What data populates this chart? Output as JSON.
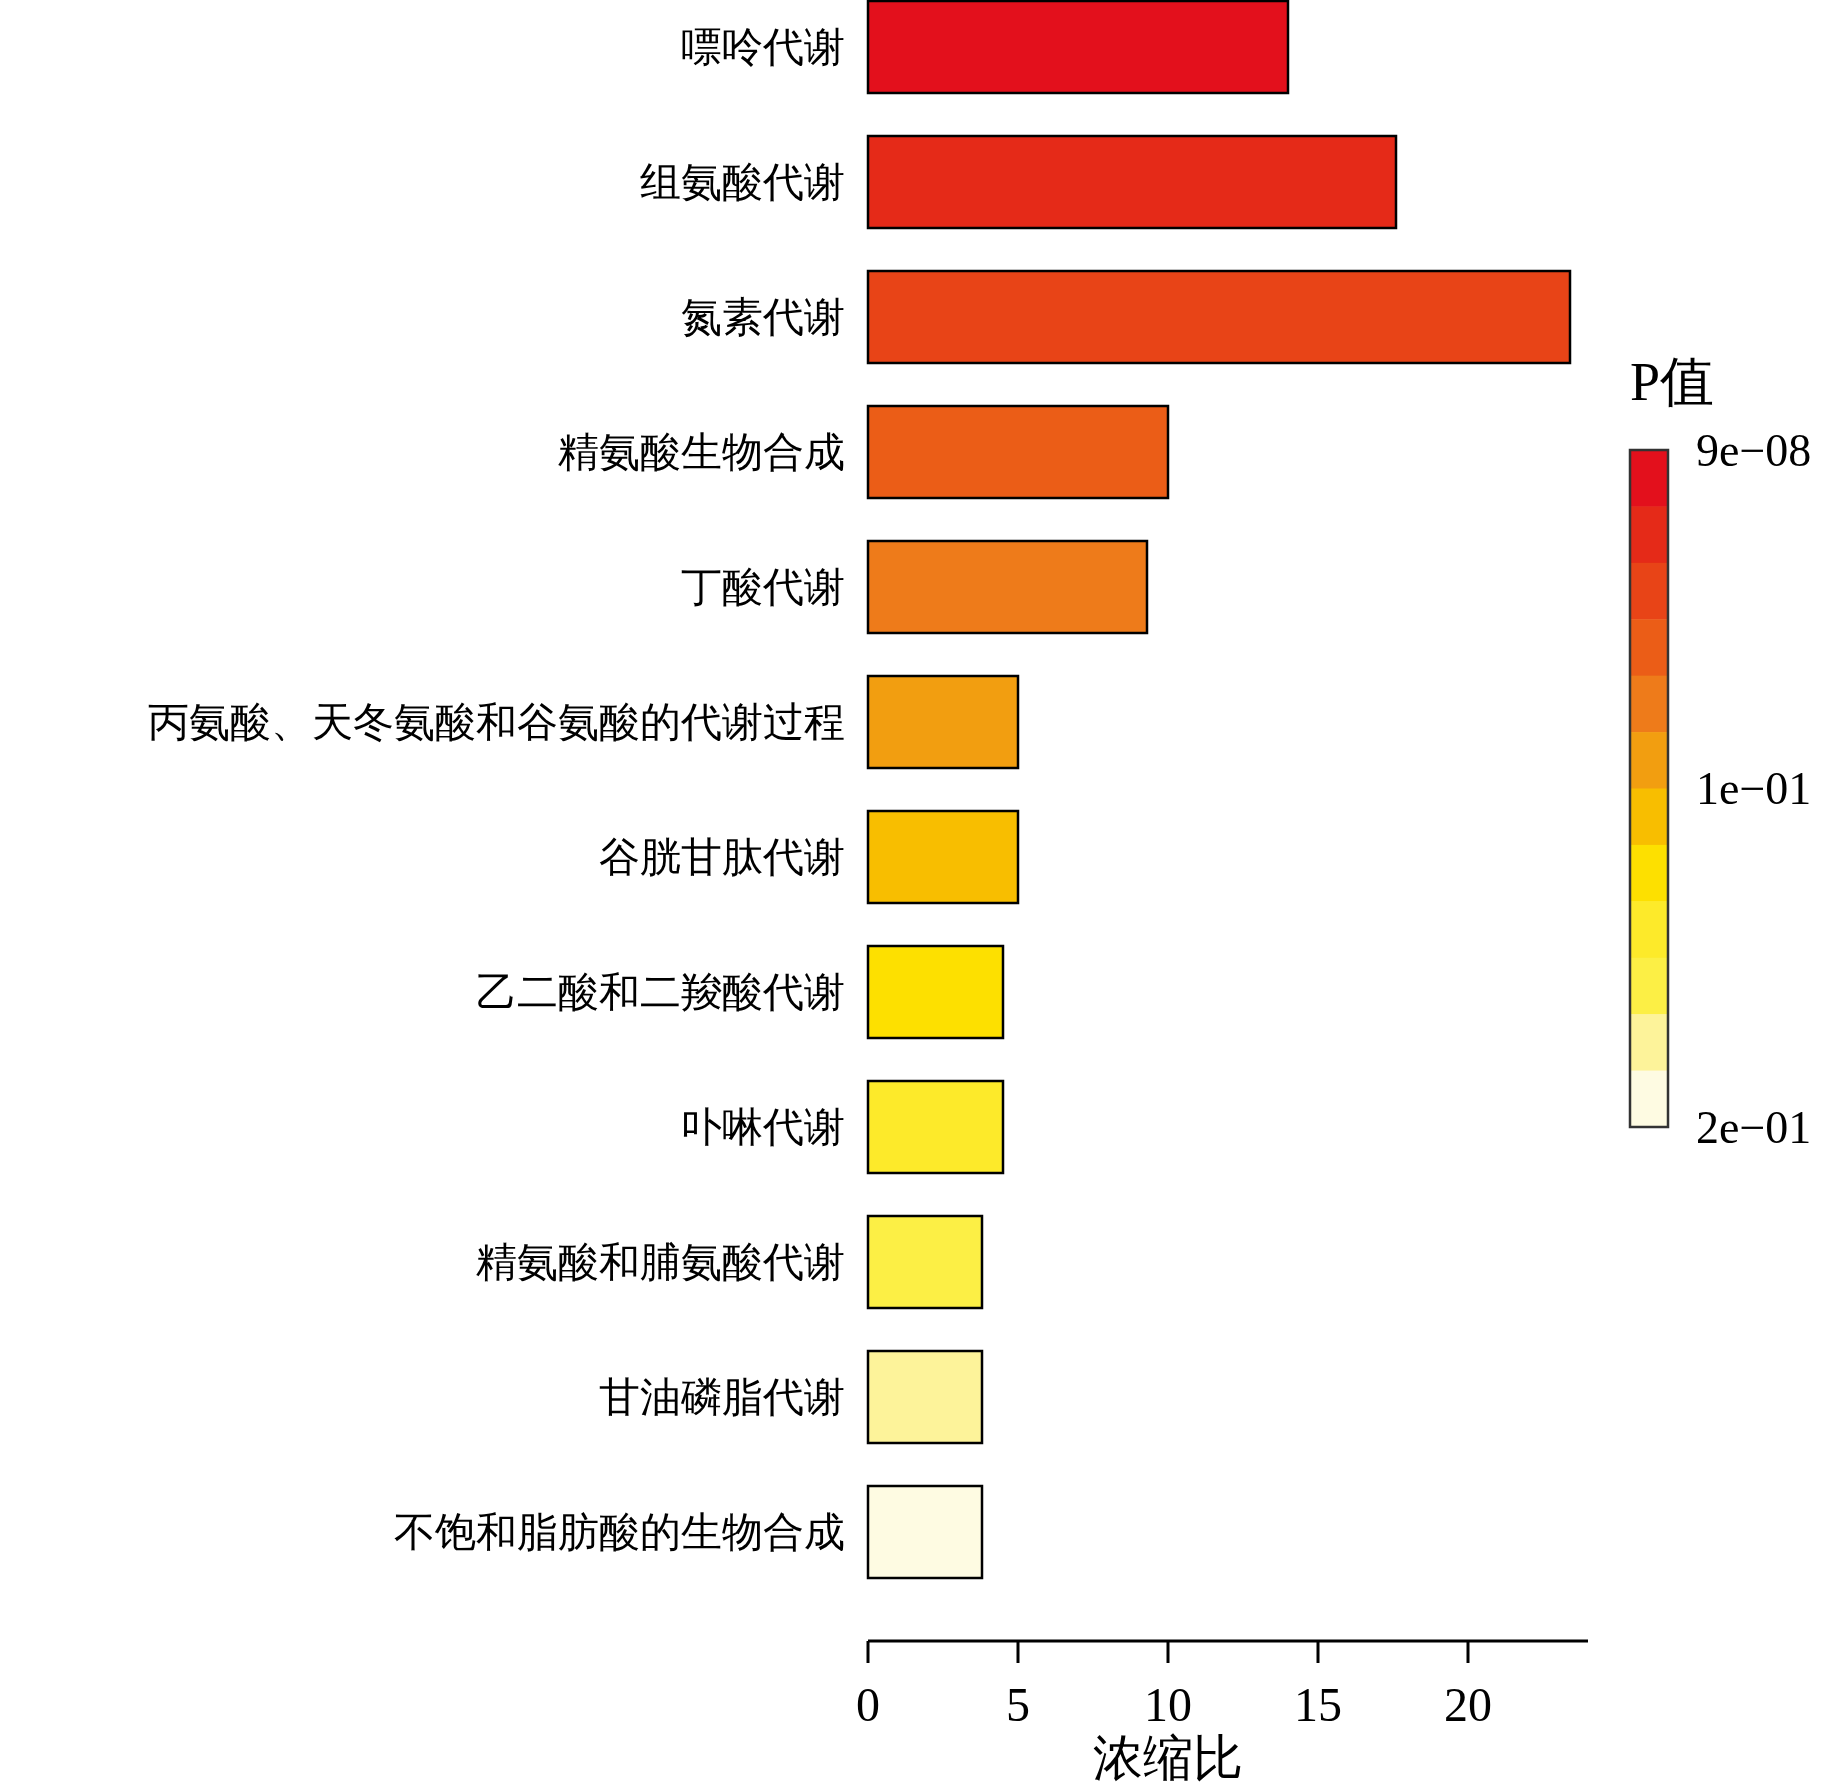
{
  "chart_data": {
    "type": "bar",
    "orientation": "horizontal",
    "categories": [
      "嘌呤代谢",
      "组氨酸代谢",
      "氮素代谢",
      "精氨酸生物合成",
      "丁酸代谢",
      "丙氨酸、天冬氨酸和谷氨酸的代谢过程",
      "谷胱甘肽代谢",
      "乙二酸和二羧酸代谢",
      "卟啉代谢",
      "精氨酸和脯氨酸代谢",
      "甘油磷脂代谢",
      "不饱和脂肪酸的生物合成"
    ],
    "values": [
      14.0,
      17.6,
      23.4,
      10.0,
      9.3,
      5.0,
      5.0,
      4.5,
      4.5,
      3.8,
      3.8,
      3.8
    ],
    "colors": [
      "#e3101c",
      "#e52a18",
      "#e84417",
      "#eb5d17",
      "#ee7b1a",
      "#f29e10",
      "#f8be00",
      "#fde000",
      "#fdea2a",
      "#fcef45",
      "#fdf39a",
      "#fefbe2"
    ],
    "xlim": [
      0,
      24
    ],
    "xticks": [
      0,
      5,
      10,
      15,
      20
    ],
    "xlabel": "浓缩比",
    "clabel": "P值",
    "clim": [
      0.2,
      9e-08
    ],
    "cticks": [
      {
        "value": 9e-08,
        "label": "9e−08"
      },
      {
        "value": 0.1,
        "label": "1e−01"
      },
      {
        "value": 0.2,
        "label": "2e−01"
      }
    ]
  }
}
